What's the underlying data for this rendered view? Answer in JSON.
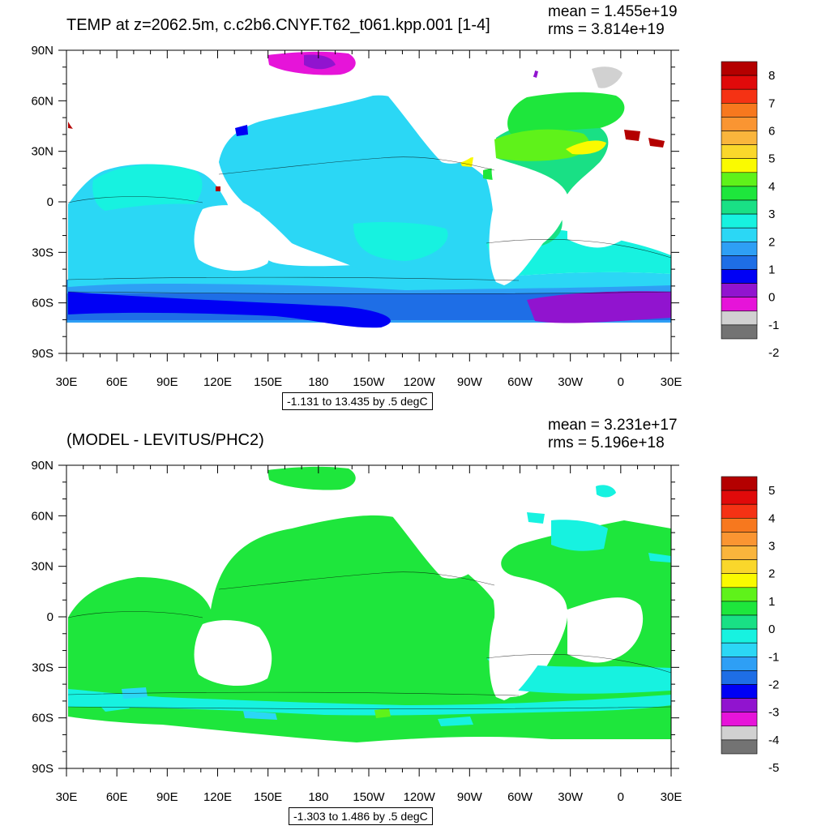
{
  "top": {
    "title": "TEMP at z=2062.5m, c.c2b6.CNYF.T62_t061.kpp.001 [1-4]",
    "mean": "mean = 1.455e+19",
    "rms": "rms = 3.814e+19",
    "range_label": "-1.131 to 13.435 by .5 degC",
    "colorbar_labels": [
      "8",
      "7",
      "6",
      "5",
      "4",
      "3",
      "2",
      "1",
      "0",
      "-1",
      "-2"
    ]
  },
  "bottom": {
    "title": "(MODEL - LEVITUS/PHC2)",
    "mean": "mean = 3.231e+17",
    "rms": "rms = 5.196e+18",
    "range_label": "-1.303 to 1.486 by .5 degC",
    "colorbar_labels": [
      "5",
      "4",
      "3",
      "2",
      "1",
      "0",
      "-1",
      "-2",
      "-3",
      "-4",
      "-5"
    ]
  },
  "axes": {
    "lat_labels": [
      "90N",
      "60N",
      "30N",
      "0",
      "30S",
      "60S",
      "90S"
    ],
    "lon_labels": [
      "30E",
      "60E",
      "90E",
      "120E",
      "150E",
      "180",
      "150W",
      "120W",
      "90W",
      "60W",
      "30W",
      "0",
      "30E"
    ]
  },
  "colors": {
    "palette": [
      "#737373",
      "#d1d1d1",
      "#e614d9",
      "#9114cf",
      "#0000f5",
      "#1e6ee6",
      "#2e9ff5",
      "#2bd7f5",
      "#17f2e0",
      "#19e085",
      "#1ee63c",
      "#5ff21a",
      "#fafa00",
      "#fad72b",
      "#fab53c",
      "#fa9532",
      "#f7781e",
      "#f53214",
      "#e00a0a",
      "#b40000"
    ],
    "land": "#ffffff"
  }
}
